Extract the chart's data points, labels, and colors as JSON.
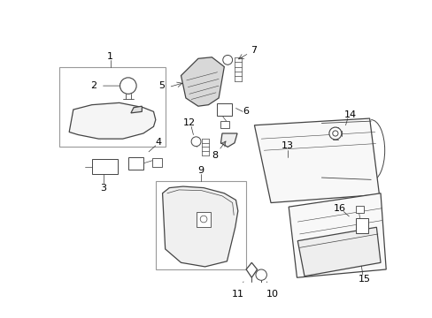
{
  "bg_color": "#ffffff",
  "line_color": "#444444",
  "label_color": "#000000",
  "fig_w": 4.89,
  "fig_h": 3.6,
  "dpi": 100
}
